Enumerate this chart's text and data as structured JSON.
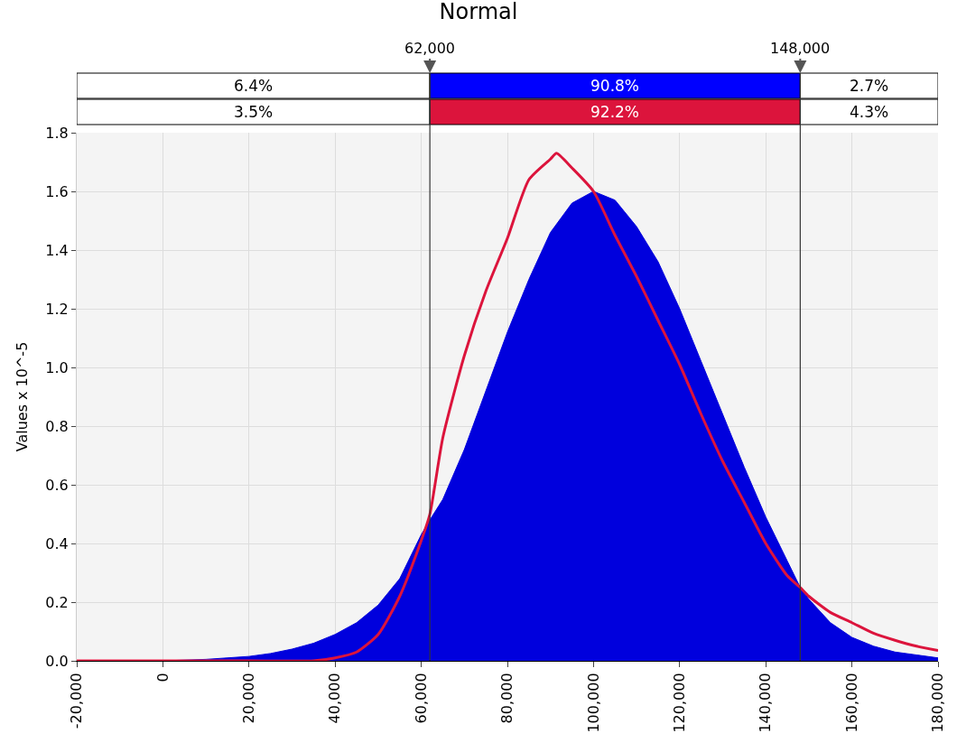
{
  "chart_data": {
    "type": "area",
    "title": "Normal",
    "ylabel": "Values x 10^-5",
    "xlim": [
      -20000,
      180000
    ],
    "xticks": [
      {
        "value": -20000,
        "label": "-20,000"
      },
      {
        "value": 0,
        "label": "0"
      },
      {
        "value": 20000,
        "label": "20,000"
      },
      {
        "value": 40000,
        "label": "40,000"
      },
      {
        "value": 60000,
        "label": "60,000"
      },
      {
        "value": 80000,
        "label": "80,000"
      },
      {
        "value": 100000,
        "label": "100,000"
      },
      {
        "value": 120000,
        "label": "120,000"
      },
      {
        "value": 140000,
        "label": "140,000"
      },
      {
        "value": 160000,
        "label": "160,000"
      },
      {
        "value": 180000,
        "label": "180,000"
      }
    ],
    "ylim": [
      0,
      1.8
    ],
    "yticks": [
      {
        "value": 0,
        "label": "0.0"
      },
      {
        "value": 0.2,
        "label": "0.2"
      },
      {
        "value": 0.4,
        "label": "0.4"
      },
      {
        "value": 0.6,
        "label": "0.6"
      },
      {
        "value": 0.8,
        "label": "0.8"
      },
      {
        "value": 1.0,
        "label": "1.0"
      },
      {
        "value": 1.2,
        "label": "1.2"
      },
      {
        "value": 1.4,
        "label": "1.4"
      },
      {
        "value": 1.6,
        "label": "1.6"
      },
      {
        "value": 1.8,
        "label": "1.8"
      }
    ],
    "grid": true,
    "legend": false,
    "series": [
      {
        "color": "#0000dd",
        "x": [
          -20000,
          0,
          10000,
          15000,
          20000,
          25000,
          30000,
          35000,
          40000,
          45000,
          50000,
          55000,
          60000,
          62000,
          65000,
          70000,
          75000,
          80000,
          85000,
          90000,
          95000,
          100000,
          105000,
          110000,
          115000,
          120000,
          125000,
          130000,
          135000,
          140000,
          145000,
          148000,
          150000,
          155000,
          160000,
          165000,
          170000,
          175000,
          180000
        ],
        "values": [
          0,
          0,
          0.005,
          0.01,
          0.015,
          0.025,
          0.04,
          0.06,
          0.09,
          0.13,
          0.19,
          0.28,
          0.43,
          0.48,
          0.55,
          0.72,
          0.92,
          1.12,
          1.3,
          1.46,
          1.56,
          1.6,
          1.57,
          1.48,
          1.36,
          1.2,
          1.02,
          0.84,
          0.66,
          0.49,
          0.34,
          0.25,
          0.21,
          0.13,
          0.08,
          0.05,
          0.03,
          0.02,
          0.01
        ]
      },
      {
        "type": "line",
        "color": "#dc143c",
        "x": [
          -20000,
          0,
          20000,
          35000,
          40000,
          45000,
          50000,
          55000,
          60000,
          62000,
          65000,
          70000,
          75000,
          80000,
          85000,
          90000,
          91400,
          95000,
          100000,
          105000,
          110000,
          115000,
          120000,
          125000,
          130000,
          135000,
          140000,
          145000,
          148000,
          150000,
          155000,
          160000,
          165000,
          170000,
          175000,
          180000
        ],
        "values": [
          0,
          0,
          0,
          0,
          0.01,
          0.03,
          0.09,
          0.22,
          0.41,
          0.5,
          0.76,
          1.04,
          1.26,
          1.44,
          1.64,
          1.71,
          1.73,
          1.68,
          1.6,
          1.45,
          1.31,
          1.16,
          1.01,
          0.84,
          0.68,
          0.54,
          0.4,
          0.29,
          0.25,
          0.22,
          0.165,
          0.13,
          0.094,
          0.07,
          0.05,
          0.035
        ]
      }
    ],
    "ref_lines": [
      {
        "axis": "x",
        "value": 62000,
        "label": "62,000",
        "color": "#333333"
      },
      {
        "axis": "x",
        "value": 148000,
        "label": "148,000",
        "color": "#333333"
      }
    ],
    "annotations": [
      "6.4%",
      "90.8%",
      "2.7%",
      "3.5%",
      "92.2%",
      "4.3%"
    ]
  }
}
